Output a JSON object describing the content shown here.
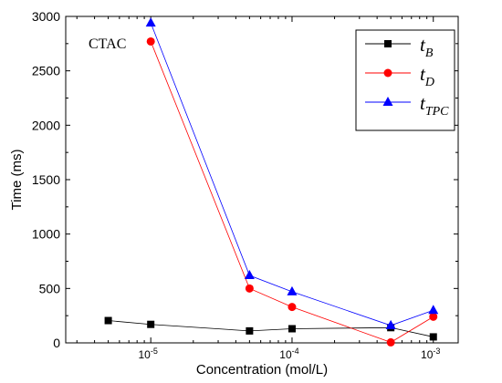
{
  "chart_data": {
    "type": "line",
    "annotation": "CTAC",
    "xlabel": "Concentration (mol/L)",
    "ylabel": "Time (ms)",
    "xscale": "log",
    "xlim": [
      2.5e-06,
      0.0015
    ],
    "ylim": [
      0,
      3000
    ],
    "yticks": [
      0,
      500,
      1000,
      1500,
      2000,
      2500,
      3000
    ],
    "xticks": [
      {
        "value": 1e-05,
        "base": "10",
        "exp": "-5"
      },
      {
        "value": 0.0001,
        "base": "10",
        "exp": "-4"
      },
      {
        "value": 0.001,
        "base": "10",
        "exp": "-3"
      }
    ],
    "legend_position": "top-right",
    "series": [
      {
        "name": "t_B",
        "label_main": "t",
        "label_sub": "B",
        "color": "#000000",
        "marker": "square",
        "x": [
          5e-06,
          1e-05,
          5e-05,
          0.0001,
          0.0005,
          0.001
        ],
        "y": [
          205,
          170,
          110,
          130,
          140,
          55
        ]
      },
      {
        "name": "t_D",
        "label_main": "t",
        "label_sub": "D",
        "color": "#ff0000",
        "marker": "circle",
        "x": [
          1e-05,
          5e-05,
          0.0001,
          0.0005,
          0.001
        ],
        "y": [
          2770,
          500,
          330,
          5,
          240
        ]
      },
      {
        "name": "t_TPC",
        "label_main": "t",
        "label_sub": "TPC",
        "color": "#0000ff",
        "marker": "triangle",
        "x": [
          1e-05,
          5e-05,
          0.0001,
          0.0005,
          0.001
        ],
        "y": [
          2940,
          620,
          470,
          160,
          300
        ]
      }
    ]
  }
}
